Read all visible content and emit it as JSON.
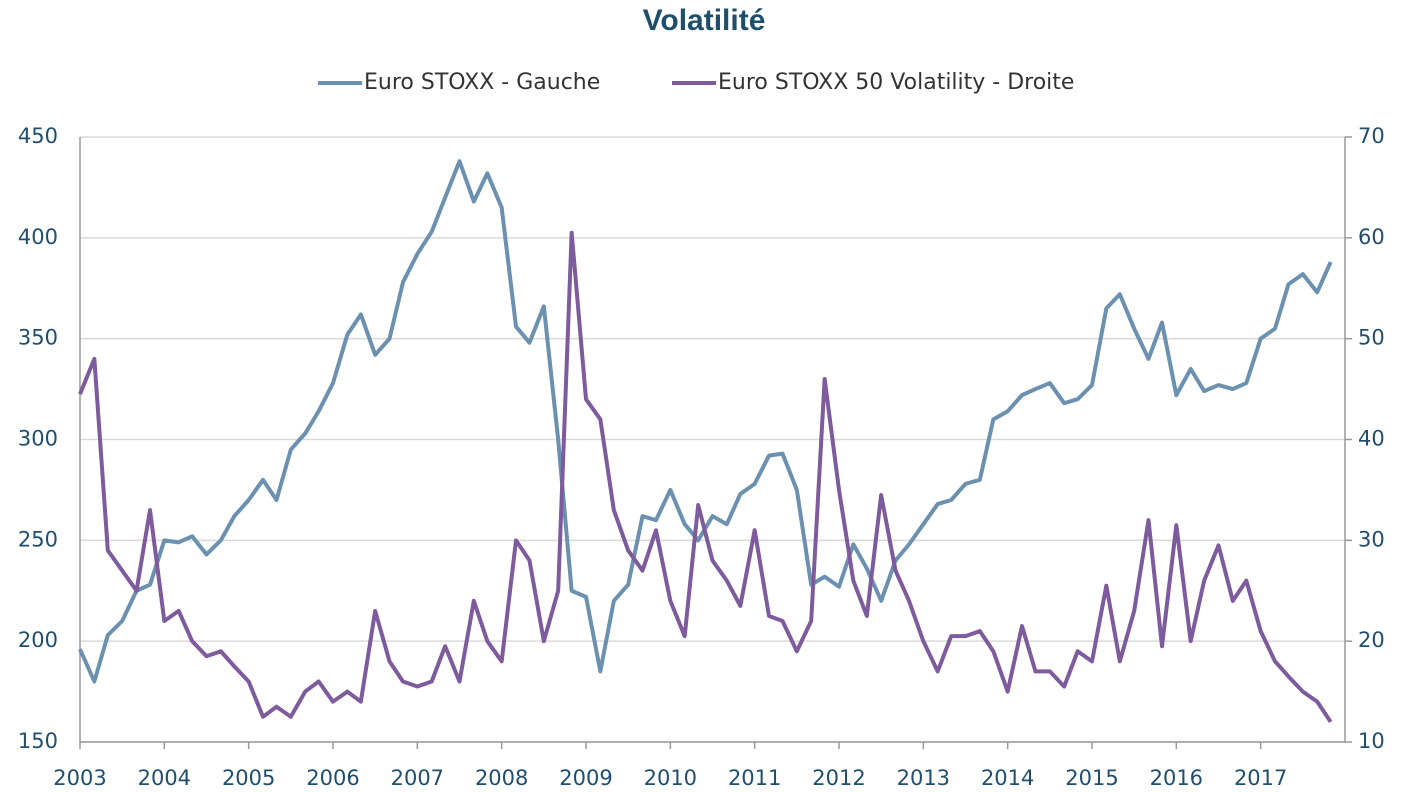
{
  "chart_data": {
    "type": "line",
    "title": "Volatilité",
    "x": [
      2003,
      2003.17,
      2003.33,
      2003.5,
      2003.67,
      2003.83,
      2004,
      2004.17,
      2004.33,
      2004.5,
      2004.67,
      2004.83,
      2005,
      2005.17,
      2005.33,
      2005.5,
      2005.67,
      2005.83,
      2006,
      2006.17,
      2006.33,
      2006.5,
      2006.67,
      2006.83,
      2007,
      2007.17,
      2007.33,
      2007.5,
      2007.67,
      2007.83,
      2008,
      2008.17,
      2008.33,
      2008.5,
      2008.67,
      2008.83,
      2009,
      2009.17,
      2009.33,
      2009.5,
      2009.67,
      2009.83,
      2010,
      2010.17,
      2010.33,
      2010.5,
      2010.67,
      2010.83,
      2011,
      2011.17,
      2011.33,
      2011.5,
      2011.67,
      2011.83,
      2012,
      2012.17,
      2012.33,
      2012.5,
      2012.67,
      2012.83,
      2013,
      2013.17,
      2013.33,
      2013.5,
      2013.67,
      2013.83,
      2014,
      2014.17,
      2014.33,
      2014.5,
      2014.67,
      2014.83,
      2015,
      2015.17,
      2015.33,
      2015.5,
      2015.67,
      2015.83,
      2016,
      2016.17,
      2016.33,
      2016.5,
      2016.67,
      2016.83,
      2017,
      2017.17,
      2017.33,
      2017.5,
      2017.67,
      2017.83
    ],
    "series": [
      {
        "name": "Euro STOXX - Gauche",
        "color": "#6b90b0",
        "axis": "y",
        "values": [
          196,
          180,
          203,
          210,
          225,
          228,
          250,
          249,
          252,
          243,
          250,
          262,
          270,
          280,
          270,
          295,
          303,
          314,
          328,
          352,
          362,
          342,
          350,
          378,
          392,
          403,
          420,
          438,
          418,
          432,
          415,
          356,
          348,
          366,
          300,
          225,
          222,
          185,
          220,
          228,
          262,
          260,
          275,
          258,
          250,
          262,
          258,
          273,
          278,
          292,
          293,
          275,
          228,
          232,
          227,
          248,
          236,
          220,
          240,
          248,
          258,
          268,
          270,
          278,
          280,
          310,
          314,
          322,
          325,
          328,
          318,
          320,
          327,
          365,
          372,
          355,
          340,
          358,
          322,
          335,
          324,
          327,
          325,
          328,
          350,
          355,
          377,
          382,
          373,
          388
        ]
      },
      {
        "name": "Euro STOXX 50 Volatility - Droite",
        "color": "#7d5b9c",
        "axis": "y2",
        "values": [
          44.5,
          48,
          29,
          27,
          25,
          33,
          22,
          23,
          20,
          18.5,
          19,
          17.5,
          16,
          12.5,
          13.5,
          12.5,
          15,
          16,
          14,
          15,
          14,
          23,
          18,
          16,
          15.5,
          16,
          19.5,
          16,
          24,
          20,
          18,
          30,
          28,
          20,
          25,
          60.5,
          44,
          42,
          33,
          29,
          27,
          31,
          24,
          20.5,
          33.5,
          28,
          26,
          23.5,
          31,
          22.5,
          22,
          19,
          22,
          46,
          35,
          26,
          22.5,
          34.5,
          27,
          24,
          20,
          17,
          20.5,
          20.5,
          21,
          19,
          15,
          21.5,
          17,
          17,
          15.5,
          19,
          18,
          25.5,
          18,
          23,
          32,
          19.5,
          31.5,
          20,
          26,
          29.5,
          24,
          26,
          21,
          18,
          16.5,
          15,
          14,
          12
        ]
      }
    ],
    "xlim": [
      2003,
      2018
    ],
    "xticks": [
      2003,
      2004,
      2005,
      2006,
      2007,
      2008,
      2009,
      2010,
      2011,
      2012,
      2013,
      2014,
      2015,
      2016,
      2017
    ],
    "ylim": [
      150,
      450
    ],
    "yticks": [
      150,
      200,
      250,
      300,
      350,
      400,
      450
    ],
    "y2lim": [
      10,
      70
    ],
    "y2ticks": [
      10,
      20,
      30,
      40,
      50,
      60,
      70
    ],
    "grid": true,
    "legend": "top"
  }
}
